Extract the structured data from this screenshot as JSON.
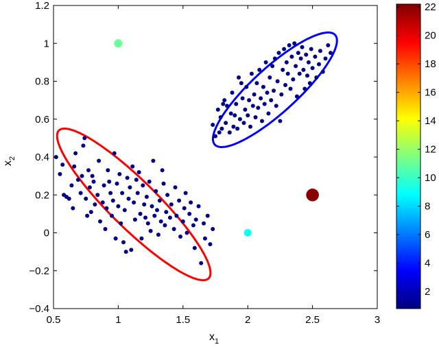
{
  "chart_data": {
    "type": "scatter",
    "title": "",
    "xlabel": "x",
    "xlabel_sub": "1",
    "ylabel": "x",
    "ylabel_sub": "2",
    "xlim": [
      0.5,
      3
    ],
    "ylim": [
      -0.4,
      1.2
    ],
    "xticks": [
      0.5,
      1,
      1.5,
      2,
      2.5,
      3
    ],
    "xtick_labels": [
      "0.5",
      "1",
      "1.5",
      "2",
      "2.5",
      "3"
    ],
    "yticks": [
      -0.4,
      -0.2,
      0,
      0.2,
      0.4,
      0.6,
      0.8,
      1,
      1.2
    ],
    "ytick_labels": [
      "−0.4",
      "−0.2",
      "0",
      "0.2",
      "0.4",
      "0.6",
      "0.8",
      "1",
      "1.2"
    ],
    "grid": false,
    "colorbar": {
      "range": [
        0.8,
        22.2
      ],
      "ticks": [
        2,
        4,
        6,
        8,
        10,
        12,
        14,
        16,
        18,
        20,
        22
      ],
      "tick_labels": [
        "2",
        "4",
        "6",
        "8",
        "10",
        "12",
        "14",
        "16",
        "18",
        "20",
        "22"
      ],
      "colormap": "jet",
      "placement": "right"
    },
    "series": [
      {
        "color_value": 1,
        "points": [
          [
            0.52,
            0.4
          ],
          [
            0.55,
            0.31
          ],
          [
            0.57,
            0.36
          ],
          [
            0.58,
            0.2
          ],
          [
            0.6,
            0.19
          ],
          [
            0.62,
            0.18
          ],
          [
            0.65,
            0.13
          ],
          [
            0.66,
            0.35
          ],
          [
            0.67,
            0.42
          ],
          [
            0.69,
            0.28
          ],
          [
            0.71,
            0.21
          ],
          [
            0.72,
            0.3
          ],
          [
            0.73,
            0.46
          ],
          [
            0.74,
            0.5
          ],
          [
            0.75,
            0.18
          ],
          [
            0.76,
            0.09
          ],
          [
            0.77,
            0.33
          ],
          [
            0.78,
            0.24
          ],
          [
            0.79,
            0.11
          ],
          [
            0.81,
            0.27
          ],
          [
            0.82,
            0.15
          ],
          [
            0.84,
            0.2
          ],
          [
            0.85,
            0.38
          ],
          [
            0.86,
            0.06
          ],
          [
            0.88,
            0.16
          ],
          [
            0.89,
            0.25
          ],
          [
            0.9,
            0.02
          ],
          [
            0.91,
            0.13
          ],
          [
            0.92,
            0.33
          ],
          [
            0.93,
            0.27
          ],
          [
            0.94,
            0.21
          ],
          [
            0.95,
            0.09
          ],
          [
            0.96,
            0.17
          ],
          [
            0.97,
            0.42
          ],
          [
            0.98,
            -0.03
          ],
          [
            0.99,
            0.26
          ],
          [
            1.0,
            0.14
          ],
          [
            1.01,
            0.31
          ],
          [
            1.02,
            0.05
          ],
          [
            1.03,
            0.21
          ],
          [
            1.04,
            -0.05
          ],
          [
            1.05,
            0.12
          ],
          [
            1.06,
            -0.1
          ],
          [
            1.07,
            0.29
          ],
          [
            1.08,
            0.18
          ],
          [
            1.09,
            0.24
          ],
          [
            1.1,
            -0.09
          ],
          [
            1.11,
            0.35
          ],
          [
            1.12,
            0.16
          ],
          [
            1.13,
            0.07
          ],
          [
            1.15,
            0.21
          ],
          [
            1.16,
            0.32
          ],
          [
            1.17,
            0.1
          ],
          [
            1.18,
            -0.03
          ],
          [
            1.19,
            0.25
          ],
          [
            1.2,
            0.15
          ],
          [
            1.21,
            0.08
          ],
          [
            1.22,
            0.19
          ],
          [
            1.23,
            0.05
          ],
          [
            1.24,
            0.27
          ],
          [
            1.25,
            0.01
          ],
          [
            1.26,
            0.14
          ],
          [
            1.27,
            0.38
          ],
          [
            1.28,
            0.09
          ],
          [
            1.29,
            0.22
          ],
          [
            1.3,
            0.12
          ],
          [
            1.31,
            -0.01
          ],
          [
            1.32,
            0.17
          ],
          [
            1.33,
            0.06
          ],
          [
            1.35,
            0.26
          ],
          [
            1.36,
            0.04
          ],
          [
            1.37,
            0.11
          ],
          [
            1.38,
            0.2
          ],
          [
            1.4,
            0.08
          ],
          [
            1.41,
            0.15
          ],
          [
            1.43,
            0.02
          ],
          [
            1.44,
            0.24
          ],
          [
            1.45,
            0.09
          ],
          [
            1.47,
            0.17
          ],
          [
            1.48,
            -0.02
          ],
          [
            1.5,
            0.06
          ],
          [
            1.51,
            0.13
          ],
          [
            1.52,
            0.21
          ],
          [
            1.53,
            0.0
          ],
          [
            1.55,
            0.1
          ],
          [
            1.56,
            0.16
          ],
          [
            1.58,
            0.04
          ],
          [
            1.59,
            -0.08
          ],
          [
            1.6,
            0.07
          ],
          [
            1.62,
            0.14
          ],
          [
            1.64,
            -0.16
          ],
          [
            1.66,
            0.05
          ],
          [
            1.67,
            -0.03
          ],
          [
            1.69,
            0.09
          ],
          [
            1.71,
            -0.06
          ],
          [
            1.73,
            0.02
          ],
          [
            0.64,
            0.25
          ],
          [
            0.8,
            0.3
          ],
          [
            1.14,
            0.28
          ],
          [
            1.34,
            0.33
          ],
          [
            2.25,
            0.59
          ],
          [
            1.9,
            0.62
          ],
          [
            1.95,
            0.79
          ],
          [
            1.73,
            0.57
          ],
          [
            1.75,
            0.51
          ],
          [
            1.77,
            0.65
          ],
          [
            1.78,
            0.53
          ],
          [
            1.79,
            0.61
          ],
          [
            1.8,
            0.55
          ],
          [
            1.81,
            0.68
          ],
          [
            1.82,
            0.7
          ],
          [
            1.83,
            0.58
          ],
          [
            1.84,
            0.67
          ],
          [
            1.86,
            0.53
          ],
          [
            1.87,
            0.63
          ],
          [
            1.88,
            0.74
          ],
          [
            1.89,
            0.56
          ],
          [
            1.91,
            0.68
          ],
          [
            1.92,
            0.55
          ],
          [
            1.93,
            0.82
          ],
          [
            1.94,
            0.6
          ],
          [
            1.96,
            0.71
          ],
          [
            1.97,
            0.58
          ],
          [
            1.98,
            0.65
          ],
          [
            1.99,
            0.77
          ],
          [
            2.0,
            0.62
          ],
          [
            2.01,
            0.7
          ],
          [
            2.02,
            0.56
          ],
          [
            2.03,
            0.84
          ],
          [
            2.04,
            0.67
          ],
          [
            2.05,
            0.73
          ],
          [
            2.06,
            0.61
          ],
          [
            2.07,
            0.79
          ],
          [
            2.08,
            0.66
          ],
          [
            2.09,
            0.86
          ],
          [
            2.1,
            0.71
          ],
          [
            2.11,
            0.59
          ],
          [
            2.12,
            0.77
          ],
          [
            2.13,
            0.68
          ],
          [
            2.14,
            0.9
          ],
          [
            2.15,
            0.74
          ],
          [
            2.16,
            0.63
          ],
          [
            2.17,
            0.82
          ],
          [
            2.18,
            0.7
          ],
          [
            2.19,
            0.88
          ],
          [
            2.2,
            0.75
          ],
          [
            2.21,
            0.92
          ],
          [
            2.22,
            0.67
          ],
          [
            2.23,
            0.8
          ],
          [
            2.24,
            0.95
          ],
          [
            2.26,
            0.73
          ],
          [
            2.27,
            0.86
          ],
          [
            2.28,
            0.97
          ],
          [
            2.29,
            0.78
          ],
          [
            2.3,
            0.9
          ],
          [
            2.31,
            0.84
          ],
          [
            2.32,
            0.99
          ],
          [
            2.33,
            0.76
          ],
          [
            2.34,
            0.93
          ],
          [
            2.35,
            0.81
          ],
          [
            2.36,
            1.0
          ],
          [
            2.37,
            0.88
          ],
          [
            2.38,
            0.72
          ],
          [
            2.39,
            0.95
          ],
          [
            2.4,
            0.84
          ],
          [
            2.41,
            0.92
          ],
          [
            2.42,
            0.98
          ],
          [
            2.43,
            0.86
          ],
          [
            2.44,
            0.76
          ],
          [
            2.45,
            0.94
          ],
          [
            2.46,
            0.83
          ],
          [
            2.47,
            0.9
          ],
          [
            2.48,
            0.79
          ],
          [
            2.49,
            0.97
          ],
          [
            2.5,
            0.87
          ],
          [
            2.52,
            0.93
          ],
          [
            2.53,
            0.82
          ],
          [
            2.55,
            0.89
          ],
          [
            2.56,
            0.96
          ],
          [
            2.58,
            0.85
          ],
          [
            2.6,
            0.92
          ],
          [
            2.62,
            0.99
          ],
          [
            2.64,
            0.95
          ]
        ]
      },
      {
        "color_value": 11,
        "points": [
          [
            1.0,
            1.0
          ]
        ]
      },
      {
        "color_value": 9,
        "points": [
          [
            2.0,
            0.0
          ]
        ]
      },
      {
        "color_value": 22,
        "points": [
          [
            2.5,
            0.2
          ]
        ]
      }
    ],
    "ellipses": [
      {
        "color": "#ff0000",
        "center": [
          1.12,
          0.15
        ],
        "semi_axes": [
          0.7,
          0.145
        ],
        "angle_deg": -33.0
      },
      {
        "color": "#0000ff",
        "center": [
          2.21,
          0.755
        ],
        "semi_axes": [
          0.55,
          0.135
        ],
        "angle_deg": 30.5
      }
    ]
  }
}
